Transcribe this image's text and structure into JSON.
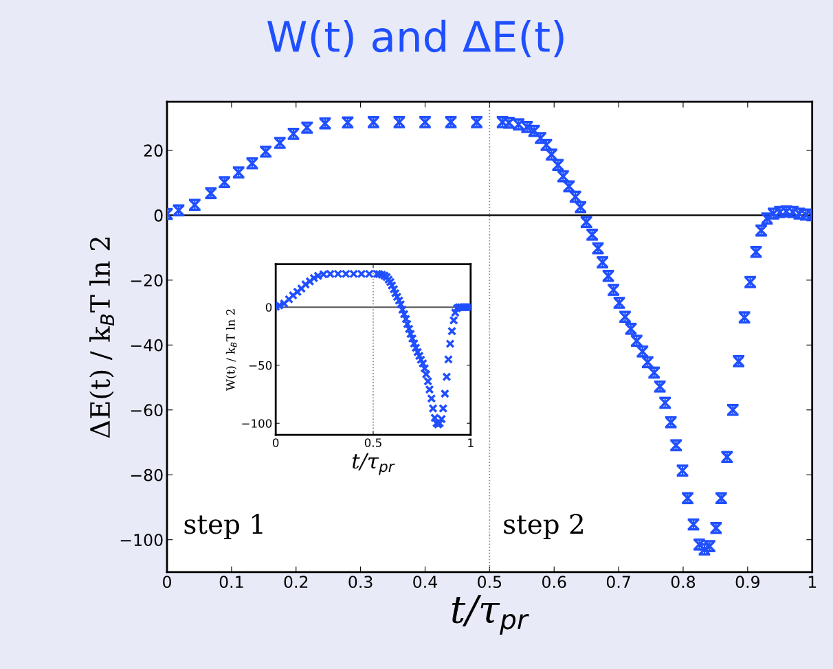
{
  "chart_data": [
    {
      "type": "scatter",
      "title": "W(t) and ΔE(t)",
      "xlabel": "t/τ$_{pr}$",
      "ylabel": "ΔE(t) / k$_{B}$T ln 2",
      "x": [
        0,
        0.018,
        0.043,
        0.068,
        0.089,
        0.111,
        0.132,
        0.153,
        0.175,
        0.196,
        0.217,
        0.245,
        0.28,
        0.32,
        0.36,
        0.4,
        0.44,
        0.48,
        0.52,
        0.53,
        0.545,
        0.558,
        0.569,
        0.579,
        0.588,
        0.596,
        0.606,
        0.614,
        0.623,
        0.633,
        0.641,
        0.65,
        0.659,
        0.668,
        0.675,
        0.684,
        0.692,
        0.701,
        0.71,
        0.719,
        0.728,
        0.737,
        0.745,
        0.755,
        0.764,
        0.772,
        0.781,
        0.789,
        0.799,
        0.807,
        0.816,
        0.825,
        0.833,
        0.841,
        0.851,
        0.859,
        0.868,
        0.877,
        0.886,
        0.895,
        0.904,
        0.913,
        0.921,
        0.93,
        0.94,
        0.95,
        0.96,
        0.97,
        0.98,
        0.99,
        1
      ],
      "series": [
        {
          "color": "#1f4fff",
          "values": [
            0.4,
            1.5,
            3.2,
            6.8,
            10.2,
            13.2,
            16,
            19.6,
            22.3,
            25.1,
            27,
            28.3,
            28.6,
            28.7,
            28.7,
            28.7,
            28.7,
            28.7,
            28.7,
            28.5,
            28,
            27.2,
            26,
            23.8,
            21.7,
            18.7,
            15.5,
            12,
            8.9,
            5.7,
            2.5,
            -2.1,
            -6,
            -10.2,
            -14.5,
            -18.7,
            -23,
            -27,
            -31.3,
            -35,
            -38.7,
            -42,
            -45.3,
            -48.5,
            -52.8,
            -57.8,
            -63.8,
            -70.9,
            -78.7,
            -87.2,
            -95.3,
            -101.5,
            -103,
            -102,
            -96.4,
            -87.2,
            -74.5,
            -60,
            -45,
            -31.5,
            -20.6,
            -11.3,
            -4.7,
            -1,
            0.5,
            1,
            1.2,
            1,
            0.5,
            0.2,
            0
          ],
          "errors": [
            1.5,
            1.5,
            1.5,
            1.5,
            1.5,
            1.5,
            1.5,
            1.5,
            1.5,
            1.5,
            1.5,
            1.5,
            1.5,
            1.5,
            1.5,
            1.5,
            1.5,
            1.5,
            1.5,
            1.5,
            1.5,
            1.5,
            1.5,
            1.5,
            1.5,
            1.5,
            1.5,
            1.5,
            1.5,
            1.5,
            1.5,
            1.5,
            1.5,
            1.5,
            1.5,
            1.5,
            1.5,
            1.5,
            1.5,
            1.5,
            1.5,
            1.5,
            1.5,
            1.5,
            1.5,
            1.5,
            1.5,
            1.5,
            1.5,
            1.5,
            1.5,
            1.5,
            1.5,
            1.5,
            1.5,
            1.5,
            1.5,
            1.5,
            1.5,
            1.5,
            1.5,
            1.5,
            1.5,
            1.5,
            1.5,
            1.5,
            1.5,
            1.5,
            1.5,
            1.5,
            1.5
          ]
        }
      ],
      "marker": "cross",
      "xlim": [
        0,
        1
      ],
      "ylim": [
        -110,
        35
      ],
      "xticks": [
        0,
        0.1,
        0.2,
        0.3,
        0.4,
        0.5,
        0.6,
        0.7,
        0.8,
        0.9,
        1
      ],
      "yticks": [
        -100,
        -80,
        -60,
        -40,
        -20,
        0,
        20
      ],
      "ref_lines": [
        {
          "axis": "y",
          "value": 0,
          "color": "#000000",
          "line_style": "solid"
        },
        {
          "axis": "x",
          "value": 0.5,
          "color": "#808080",
          "line_style": "dotted"
        }
      ],
      "annotations": [
        "step 1",
        "step 2"
      ],
      "grid": false,
      "legend": false
    },
    {
      "type": "scatter",
      "xlabel": "t/τ$_{pr}$",
      "ylabel": "W(t) / k$_{B}$T ln 2",
      "x": [
        0,
        0.018,
        0.043,
        0.068,
        0.089,
        0.111,
        0.132,
        0.153,
        0.175,
        0.196,
        0.217,
        0.245,
        0.28,
        0.32,
        0.36,
        0.4,
        0.44,
        0.48,
        0.52,
        0.53,
        0.545,
        0.558,
        0.569,
        0.579,
        0.588,
        0.596,
        0.606,
        0.614,
        0.623,
        0.633,
        0.641,
        0.65,
        0.659,
        0.668,
        0.675,
        0.684,
        0.692,
        0.701,
        0.71,
        0.719,
        0.728,
        0.737,
        0.745,
        0.755,
        0.764,
        0.772,
        0.781,
        0.789,
        0.799,
        0.807,
        0.816,
        0.825,
        0.833,
        0.841,
        0.851,
        0.859,
        0.868,
        0.877,
        0.886,
        0.895,
        0.904,
        0.913,
        0.921,
        0.93,
        0.94,
        0.95,
        0.96,
        0.97,
        0.98,
        0.99,
        1
      ],
      "series": [
        {
          "color": "#1f4fff",
          "values": [
            0.4,
            1.5,
            3.2,
            6.8,
            10.2,
            13.2,
            16,
            19.6,
            22.3,
            25.1,
            27,
            28.3,
            28.6,
            28.7,
            28.7,
            28.7,
            28.7,
            28.7,
            28.7,
            28.5,
            28,
            27.2,
            26,
            23.8,
            21.7,
            18.7,
            15.5,
            12,
            8.9,
            5.7,
            2.5,
            -2.1,
            -6,
            -10.2,
            -14.5,
            -18.7,
            -23,
            -27,
            -31.3,
            -35,
            -38.7,
            -42,
            -45.3,
            -48.5,
            -52.8,
            -57.8,
            -63.8,
            -70.9,
            -78.7,
            -87.2,
            -95.3,
            -100,
            -101,
            -100,
            -96.4,
            -87.2,
            -74.5,
            -60,
            -45,
            -31.5,
            -20.6,
            -11.3,
            -4.7,
            -1,
            0,
            0,
            0,
            0,
            0,
            0,
            0
          ]
        }
      ],
      "marker": "cross",
      "xlim": [
        0,
        1
      ],
      "ylim": [
        -110,
        37
      ],
      "xticks": [
        0,
        0.5,
        1
      ],
      "yticks": [
        -100,
        -50,
        0
      ],
      "ref_lines": [
        {
          "axis": "y",
          "value": 0,
          "color": "#555555",
          "line_style": "solid"
        },
        {
          "axis": "x",
          "value": 0.5,
          "color": "#808080",
          "line_style": "dotted"
        }
      ],
      "grid": false,
      "legend": false
    }
  ]
}
